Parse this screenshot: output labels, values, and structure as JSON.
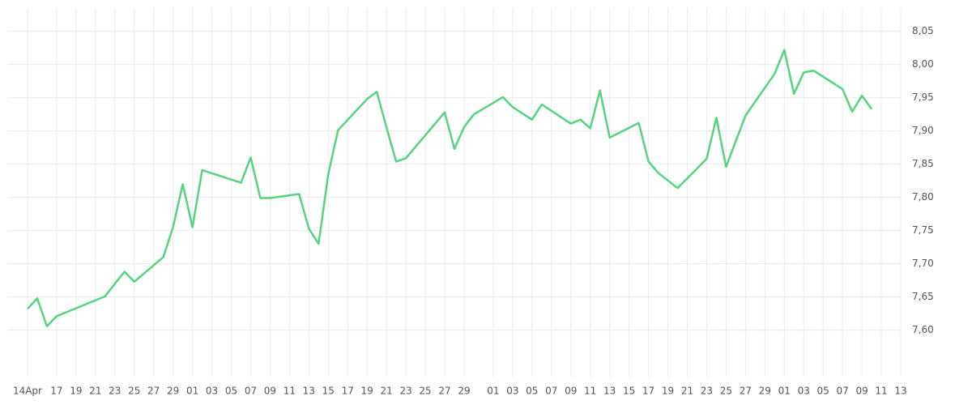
{
  "chart_data": {
    "type": "line",
    "x": [
      "04-14",
      "04-15",
      "04-16",
      "04-17",
      "04-22",
      "04-23",
      "04-24",
      "04-25",
      "04-28",
      "04-29",
      "04-30",
      "05-01",
      "05-02",
      "05-06",
      "05-07",
      "05-08",
      "05-09",
      "05-12",
      "05-13",
      "05-14",
      "05-15",
      "05-16",
      "05-19",
      "05-20",
      "05-21",
      "05-22",
      "05-23",
      "05-27",
      "05-28",
      "05-29",
      "05-30",
      "06-02",
      "06-03",
      "06-05",
      "06-06",
      "06-09",
      "06-10",
      "06-11",
      "06-12",
      "06-13",
      "06-16",
      "06-17",
      "06-18",
      "06-20",
      "06-23",
      "06-24",
      "06-25",
      "06-27",
      "06-30",
      "07-01",
      "07-02",
      "07-03",
      "07-04",
      "07-07",
      "07-08",
      "07-09",
      "07-10"
    ],
    "series": [
      {
        "color": "#55d47f",
        "values": [
          7.632,
          7.648,
          7.606,
          7.621,
          7.651,
          7.67,
          7.688,
          7.673,
          7.71,
          7.755,
          7.82,
          7.755,
          7.841,
          7.822,
          7.86,
          7.799,
          7.799,
          7.805,
          7.753,
          7.73,
          7.835,
          7.901,
          7.948,
          7.959,
          7.905,
          7.854,
          7.859,
          7.928,
          7.873,
          7.906,
          7.925,
          7.951,
          7.936,
          7.917,
          7.94,
          7.911,
          7.917,
          7.904,
          7.961,
          7.89,
          7.912,
          7.854,
          7.837,
          7.814,
          7.858,
          7.92,
          7.846,
          7.923,
          7.986,
          8.022,
          7.956,
          7.988,
          7.991,
          7.963,
          7.929,
          7.953,
          7.933
        ]
      }
    ],
    "xlim": [
      "04-12",
      "07-13"
    ],
    "xticks": [
      {
        "value": "04-14",
        "label": "14Apr"
      },
      {
        "value": "04-17",
        "label": "17"
      },
      {
        "value": "04-19",
        "label": "19"
      },
      {
        "value": "04-21",
        "label": "21"
      },
      {
        "value": "04-23",
        "label": "23"
      },
      {
        "value": "04-25",
        "label": "25"
      },
      {
        "value": "04-27",
        "label": "27"
      },
      {
        "value": "04-29",
        "label": "29"
      },
      {
        "value": "05-01",
        "label": "01"
      },
      {
        "value": "05-03",
        "label": "03"
      },
      {
        "value": "05-05",
        "label": "05"
      },
      {
        "value": "05-07",
        "label": "07"
      },
      {
        "value": "05-09",
        "label": "09"
      },
      {
        "value": "05-11",
        "label": "11"
      },
      {
        "value": "05-13",
        "label": "13"
      },
      {
        "value": "05-15",
        "label": "15"
      },
      {
        "value": "05-17",
        "label": "17"
      },
      {
        "value": "05-19",
        "label": "19"
      },
      {
        "value": "05-21",
        "label": "21"
      },
      {
        "value": "05-23",
        "label": "23"
      },
      {
        "value": "05-25",
        "label": "25"
      },
      {
        "value": "05-27",
        "label": "27"
      },
      {
        "value": "05-29",
        "label": "29"
      },
      {
        "value": "06-01",
        "label": "01"
      },
      {
        "value": "06-03",
        "label": "03"
      },
      {
        "value": "06-05",
        "label": "05"
      },
      {
        "value": "06-07",
        "label": "07"
      },
      {
        "value": "06-09",
        "label": "09"
      },
      {
        "value": "06-11",
        "label": "11"
      },
      {
        "value": "06-13",
        "label": "13"
      },
      {
        "value": "06-15",
        "label": "15"
      },
      {
        "value": "06-17",
        "label": "17"
      },
      {
        "value": "06-19",
        "label": "19"
      },
      {
        "value": "06-21",
        "label": "21"
      },
      {
        "value": "06-23",
        "label": "23"
      },
      {
        "value": "06-25",
        "label": "25"
      },
      {
        "value": "06-27",
        "label": "27"
      },
      {
        "value": "06-29",
        "label": "29"
      },
      {
        "value": "07-01",
        "label": "01"
      },
      {
        "value": "07-03",
        "label": "03"
      },
      {
        "value": "07-05",
        "label": "05"
      },
      {
        "value": "07-07",
        "label": "07"
      },
      {
        "value": "07-09",
        "label": "09"
      },
      {
        "value": "07-11",
        "label": "11"
      },
      {
        "value": "07-13",
        "label": "13"
      }
    ],
    "ylim": [
      7.53,
      8.085
    ],
    "yticks": [
      {
        "value": 7.6,
        "label": "7,60"
      },
      {
        "value": 7.65,
        "label": "7,65"
      },
      {
        "value": 7.7,
        "label": "7,70"
      },
      {
        "value": 7.75,
        "label": "7,75"
      },
      {
        "value": 7.8,
        "label": "7,80"
      },
      {
        "value": 7.85,
        "label": "7,85"
      },
      {
        "value": 7.9,
        "label": "7,90"
      },
      {
        "value": 7.95,
        "label": "7,95"
      },
      {
        "value": 8.0,
        "label": "8,00"
      },
      {
        "value": 8.05,
        "label": "8,05"
      }
    ],
    "grid": true
  }
}
